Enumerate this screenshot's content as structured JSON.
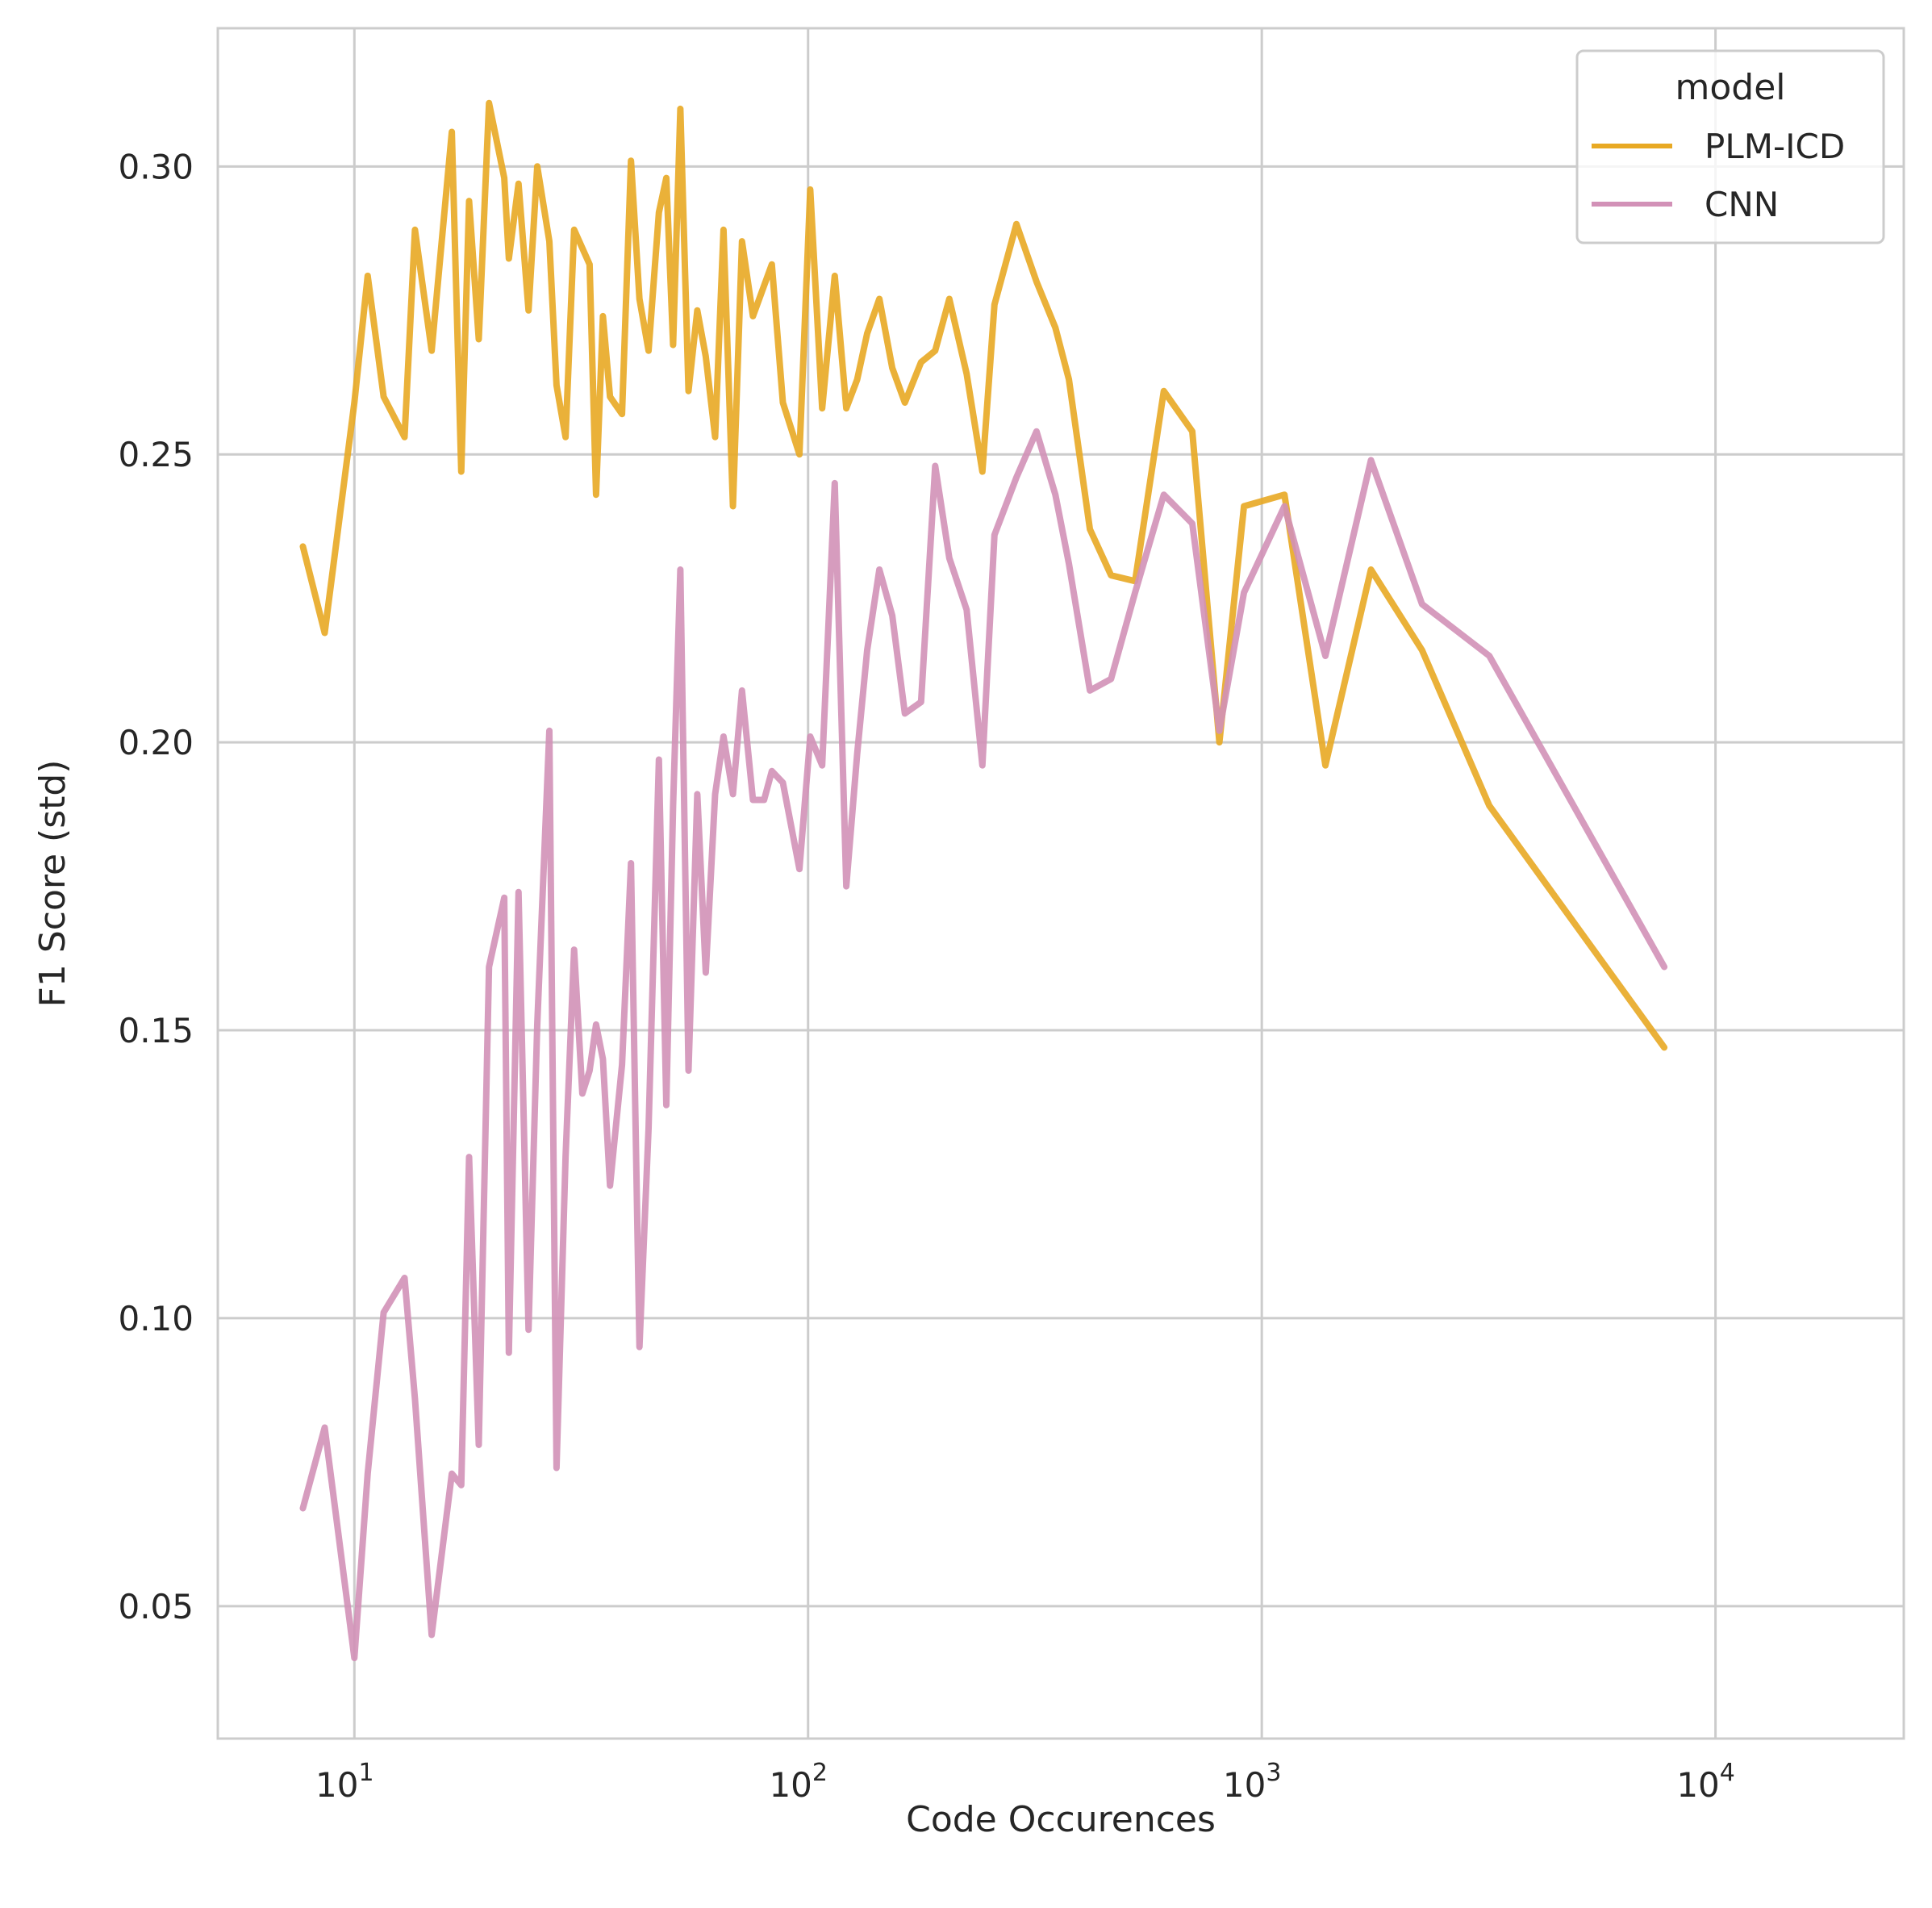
{
  "chart_data": {
    "type": "line",
    "xlabel": "Code Occurences",
    "ylabel": "F1 Score (std)",
    "xscale": "log",
    "xlim": [
      5.0,
      26000
    ],
    "ylim": [
      0.027,
      0.324
    ],
    "grid": true,
    "legend_title": "model",
    "legend_position": "top-right",
    "x_ticks": [
      {
        "value": 10,
        "base": "10",
        "exp": "1"
      },
      {
        "value": 100,
        "base": "10",
        "exp": "2"
      },
      {
        "value": 1000,
        "base": "10",
        "exp": "3"
      },
      {
        "value": 10000,
        "base": "10",
        "exp": "4"
      }
    ],
    "y_ticks": [
      {
        "value": 0.05,
        "label": "0.05"
      },
      {
        "value": 0.1,
        "label": "0.10"
      },
      {
        "value": 0.15,
        "label": "0.15"
      },
      {
        "value": 0.2,
        "label": "0.20"
      },
      {
        "value": 0.25,
        "label": "0.25"
      },
      {
        "value": 0.3,
        "label": "0.30"
      }
    ],
    "series": [
      {
        "name": "PLM-ICD",
        "color": "#e8a923",
        "points": [
          [
            7.7,
            0.234
          ],
          [
            8.6,
            0.219
          ],
          [
            10.0,
            0.259
          ],
          [
            10.7,
            0.281
          ],
          [
            11.6,
            0.26
          ],
          [
            12.9,
            0.253
          ],
          [
            13.6,
            0.289
          ],
          [
            14.8,
            0.268
          ],
          [
            16.4,
            0.306
          ],
          [
            17.2,
            0.247
          ],
          [
            17.9,
            0.294
          ],
          [
            18.8,
            0.27
          ],
          [
            19.8,
            0.311
          ],
          [
            21.4,
            0.298
          ],
          [
            21.9,
            0.284
          ],
          [
            23.0,
            0.297
          ],
          [
            24.2,
            0.275
          ],
          [
            25.3,
            0.3
          ],
          [
            26.9,
            0.287
          ],
          [
            27.9,
            0.262
          ],
          [
            29.2,
            0.253
          ],
          [
            30.5,
            0.289
          ],
          [
            33.0,
            0.283
          ],
          [
            34.1,
            0.243
          ],
          [
            35.3,
            0.274
          ],
          [
            36.6,
            0.26
          ],
          [
            38.9,
            0.257
          ],
          [
            40.7,
            0.301
          ],
          [
            42.5,
            0.277
          ],
          [
            44.5,
            0.268
          ],
          [
            46.9,
            0.292
          ],
          [
            48.7,
            0.298
          ],
          [
            50.4,
            0.269
          ],
          [
            52.3,
            0.31
          ],
          [
            54.5,
            0.261
          ],
          [
            57.0,
            0.275
          ],
          [
            59.5,
            0.267
          ],
          [
            62.4,
            0.253
          ],
          [
            65.1,
            0.289
          ],
          [
            68.3,
            0.241
          ],
          [
            71.5,
            0.287
          ],
          [
            75.6,
            0.274
          ],
          [
            83.2,
            0.283
          ],
          [
            88.0,
            0.259
          ],
          [
            95.7,
            0.25
          ],
          [
            101.1,
            0.296
          ],
          [
            107.4,
            0.258
          ],
          [
            114.5,
            0.281
          ],
          [
            121.4,
            0.258
          ],
          [
            128.3,
            0.263
          ],
          [
            135.0,
            0.271
          ],
          [
            143.6,
            0.277
          ],
          [
            153.3,
            0.265
          ],
          [
            163.4,
            0.259
          ],
          [
            177.4,
            0.266
          ],
          [
            190.6,
            0.268
          ],
          [
            204.8,
            0.277
          ],
          [
            223.6,
            0.264
          ],
          [
            242.2,
            0.247
          ],
          [
            257.5,
            0.276
          ],
          [
            287.9,
            0.29
          ],
          [
            318.7,
            0.28
          ],
          [
            350.8,
            0.272
          ],
          [
            375.8,
            0.263
          ],
          [
            418.0,
            0.237
          ],
          [
            465.4,
            0.229
          ],
          [
            525.7,
            0.228
          ],
          [
            608.2,
            0.261
          ],
          [
            702.8,
            0.254
          ],
          [
            806.2,
            0.2
          ],
          [
            913.7,
            0.241
          ],
          [
            1122.0,
            0.243
          ],
          [
            1381.0,
            0.196
          ],
          [
            1740.0,
            0.23
          ],
          [
            2255.0,
            0.216
          ],
          [
            3173.0,
            0.189
          ],
          [
            7711.0,
            0.147
          ]
        ]
      },
      {
        "name": "CNN",
        "color": "#d291b7",
        "points": [
          [
            7.7,
            0.067
          ],
          [
            8.6,
            0.081
          ],
          [
            10.0,
            0.041
          ],
          [
            10.7,
            0.073
          ],
          [
            11.6,
            0.101
          ],
          [
            12.9,
            0.107
          ],
          [
            13.6,
            0.086
          ],
          [
            14.8,
            0.045
          ],
          [
            16.4,
            0.073
          ],
          [
            17.2,
            0.071
          ],
          [
            17.9,
            0.128
          ],
          [
            18.8,
            0.078
          ],
          [
            19.8,
            0.161
          ],
          [
            21.4,
            0.173
          ],
          [
            21.9,
            0.094
          ],
          [
            23.0,
            0.174
          ],
          [
            24.2,
            0.098
          ],
          [
            25.3,
            0.151
          ],
          [
            26.9,
            0.202
          ],
          [
            27.9,
            0.074
          ],
          [
            29.2,
            0.128
          ],
          [
            30.5,
            0.164
          ],
          [
            31.8,
            0.139
          ],
          [
            33.0,
            0.143
          ],
          [
            34.1,
            0.151
          ],
          [
            35.3,
            0.145
          ],
          [
            36.6,
            0.123
          ],
          [
            38.9,
            0.144
          ],
          [
            40.7,
            0.179
          ],
          [
            42.5,
            0.095
          ],
          [
            44.5,
            0.133
          ],
          [
            46.9,
            0.197
          ],
          [
            48.7,
            0.137
          ],
          [
            50.4,
            0.189
          ],
          [
            52.3,
            0.23
          ],
          [
            54.5,
            0.143
          ],
          [
            57.0,
            0.191
          ],
          [
            59.5,
            0.16
          ],
          [
            62.4,
            0.191
          ],
          [
            65.1,
            0.201
          ],
          [
            68.3,
            0.191
          ],
          [
            71.5,
            0.209
          ],
          [
            75.6,
            0.19
          ],
          [
            80.0,
            0.19
          ],
          [
            83.2,
            0.195
          ],
          [
            88.0,
            0.193
          ],
          [
            95.7,
            0.178
          ],
          [
            101.1,
            0.201
          ],
          [
            107.4,
            0.196
          ],
          [
            114.5,
            0.245
          ],
          [
            121.4,
            0.175
          ],
          [
            128.3,
            0.198
          ],
          [
            135.0,
            0.216
          ],
          [
            143.6,
            0.23
          ],
          [
            153.3,
            0.222
          ],
          [
            163.4,
            0.205
          ],
          [
            177.4,
            0.207
          ],
          [
            190.6,
            0.248
          ],
          [
            204.8,
            0.232
          ],
          [
            223.6,
            0.223
          ],
          [
            242.2,
            0.196
          ],
          [
            257.5,
            0.236
          ],
          [
            287.9,
            0.246
          ],
          [
            318.7,
            0.254
          ],
          [
            350.8,
            0.243
          ],
          [
            375.8,
            0.231
          ],
          [
            418.0,
            0.209
          ],
          [
            465.4,
            0.211
          ],
          [
            525.7,
            0.226
          ],
          [
            608.2,
            0.243
          ],
          [
            702.8,
            0.238
          ],
          [
            806.2,
            0.202
          ],
          [
            913.7,
            0.226
          ],
          [
            1122.0,
            0.241
          ],
          [
            1381.0,
            0.215
          ],
          [
            1740.0,
            0.249
          ],
          [
            2255.0,
            0.224
          ],
          [
            3173.0,
            0.215
          ],
          [
            7711.0,
            0.161
          ]
        ]
      }
    ]
  }
}
